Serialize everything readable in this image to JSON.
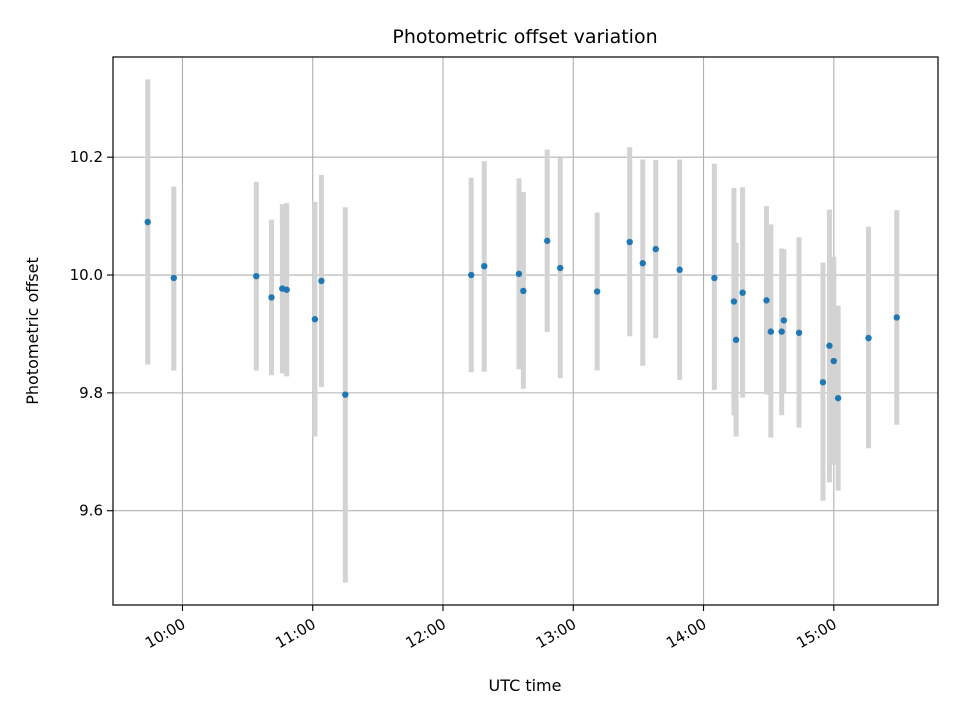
{
  "chart_data": {
    "type": "scatter",
    "title": "Photometric offset variation",
    "xlabel": "UTC time",
    "ylabel": "Photometric offset",
    "x_tick_labels": [
      "10:00",
      "11:00",
      "12:00",
      "13:00",
      "14:00",
      "15:00"
    ],
    "y_tick_labels": [
      "9.6",
      "9.8",
      "10.0",
      "10.2"
    ],
    "xlim": [
      "09:28",
      "15:48"
    ],
    "ylim": [
      9.44,
      10.37
    ],
    "grid": true,
    "marker_color": "#1f77b4",
    "errorbar_color": "#d3d3d3",
    "points": [
      {
        "t": "09:44",
        "y": 10.09,
        "lo": 9.848,
        "hi": 10.332
      },
      {
        "t": "09:56",
        "y": 9.995,
        "lo": 9.838,
        "hi": 10.15
      },
      {
        "t": "10:34",
        "y": 9.998,
        "lo": 9.838,
        "hi": 10.158
      },
      {
        "t": "10:41",
        "y": 9.962,
        "lo": 9.83,
        "hi": 10.094
      },
      {
        "t": "10:46",
        "y": 9.977,
        "lo": 9.833,
        "hi": 10.12
      },
      {
        "t": "10:48",
        "y": 9.975,
        "lo": 9.828,
        "hi": 10.122
      },
      {
        "t": "11:01",
        "y": 9.925,
        "lo": 9.726,
        "hi": 10.124
      },
      {
        "t": "11:04",
        "y": 9.99,
        "lo": 9.81,
        "hi": 10.17
      },
      {
        "t": "11:15",
        "y": 9.797,
        "lo": 9.478,
        "hi": 10.115
      },
      {
        "t": "12:13",
        "y": 10.0,
        "lo": 9.835,
        "hi": 10.165
      },
      {
        "t": "12:19",
        "y": 10.015,
        "lo": 9.836,
        "hi": 10.193
      },
      {
        "t": "12:35",
        "y": 10.002,
        "lo": 9.84,
        "hi": 10.164
      },
      {
        "t": "12:37",
        "y": 9.973,
        "lo": 9.807,
        "hi": 10.141
      },
      {
        "t": "12:48",
        "y": 10.058,
        "lo": 9.903,
        "hi": 10.213
      },
      {
        "t": "12:54",
        "y": 10.012,
        "lo": 9.825,
        "hi": 10.199
      },
      {
        "t": "13:11",
        "y": 9.972,
        "lo": 9.838,
        "hi": 10.106
      },
      {
        "t": "13:26",
        "y": 10.056,
        "lo": 9.896,
        "hi": 10.217
      },
      {
        "t": "13:32",
        "y": 10.02,
        "lo": 9.846,
        "hi": 10.196
      },
      {
        "t": "13:38",
        "y": 10.044,
        "lo": 9.893,
        "hi": 10.195
      },
      {
        "t": "13:49",
        "y": 10.009,
        "lo": 9.822,
        "hi": 10.196
      },
      {
        "t": "14:05",
        "y": 9.995,
        "lo": 9.805,
        "hi": 10.189
      },
      {
        "t": "14:14",
        "y": 9.955,
        "lo": 9.762,
        "hi": 10.148
      },
      {
        "t": "14:15",
        "y": 9.89,
        "lo": 9.726,
        "hi": 10.055
      },
      {
        "t": "14:18",
        "y": 9.97,
        "lo": 9.792,
        "hi": 10.149
      },
      {
        "t": "14:29",
        "y": 9.957,
        "lo": 9.797,
        "hi": 10.117
      },
      {
        "t": "14:31",
        "y": 9.904,
        "lo": 9.724,
        "hi": 10.086
      },
      {
        "t": "14:36",
        "y": 9.904,
        "lo": 9.762,
        "hi": 10.045
      },
      {
        "t": "14:37",
        "y": 9.923,
        "lo": 9.801,
        "hi": 10.044
      },
      {
        "t": "14:44",
        "y": 9.902,
        "lo": 9.741,
        "hi": 10.064
      },
      {
        "t": "14:55",
        "y": 9.818,
        "lo": 9.617,
        "hi": 10.021
      },
      {
        "t": "14:58",
        "y": 9.88,
        "lo": 9.648,
        "hi": 10.111
      },
      {
        "t": "15:00",
        "y": 9.854,
        "lo": 9.678,
        "hi": 10.031
      },
      {
        "t": "15:02",
        "y": 9.791,
        "lo": 9.634,
        "hi": 9.948
      },
      {
        "t": "15:16",
        "y": 9.893,
        "lo": 9.706,
        "hi": 10.082
      },
      {
        "t": "15:29",
        "y": 9.928,
        "lo": 9.746,
        "hi": 10.11
      }
    ]
  }
}
